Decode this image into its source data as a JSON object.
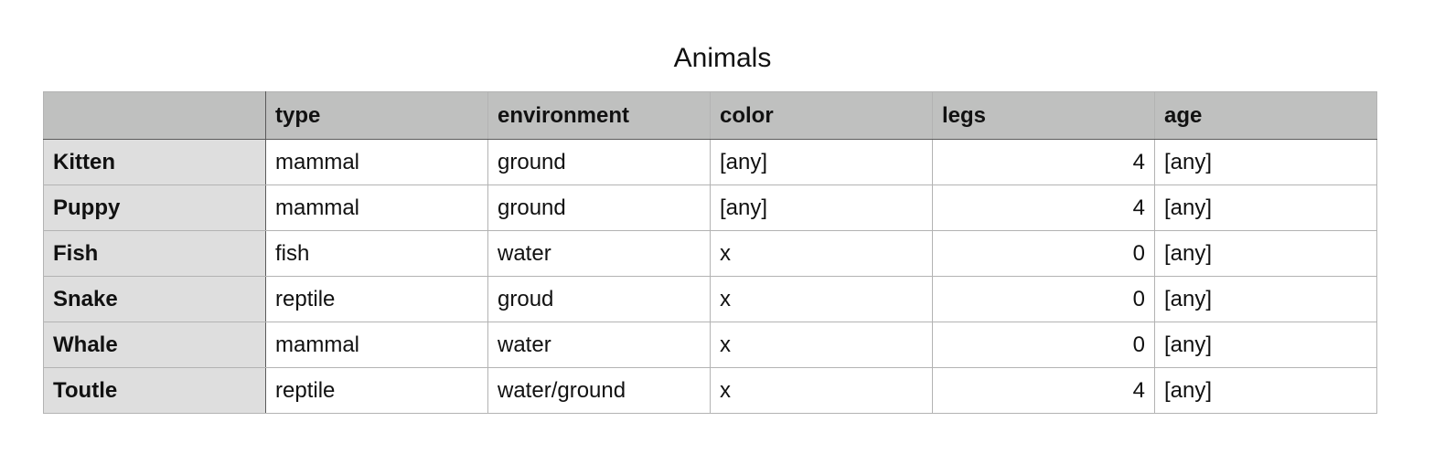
{
  "title": "Animals",
  "columns": [
    "",
    "type",
    "environment",
    "color",
    "legs",
    "age"
  ],
  "rows": [
    {
      "name": "Kitten",
      "type": "mammal",
      "environment": "ground",
      "color": "[any]",
      "legs": "4",
      "age": "[any]"
    },
    {
      "name": "Puppy",
      "type": "mammal",
      "environment": "ground",
      "color": "[any]",
      "legs": "4",
      "age": "[any]"
    },
    {
      "name": "Fish",
      "type": "fish",
      "environment": "water",
      "color": "x",
      "legs": "0",
      "age": "[any]"
    },
    {
      "name": "Snake",
      "type": "reptile",
      "environment": "groud",
      "color": "x",
      "legs": "0",
      "age": "[any]"
    },
    {
      "name": "Whale",
      "type": "mammal",
      "environment": "water",
      "color": "x",
      "legs": "0",
      "age": "[any]"
    },
    {
      "name": "Toutle",
      "type": "reptile",
      "environment": "water/ground",
      "color": "x",
      "legs": "4",
      "age": "[any]"
    }
  ],
  "colors": {
    "header_bg": "#bfc0bf",
    "row_header_bg": "#dedede",
    "grid_line": "#b3b3b3"
  }
}
